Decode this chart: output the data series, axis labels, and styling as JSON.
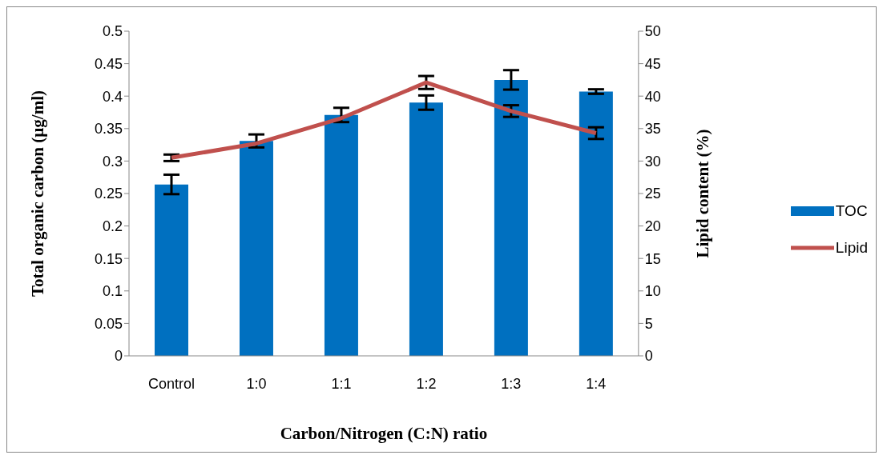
{
  "chart_data": {
    "type": "bar",
    "categories": [
      "Control",
      "1:0",
      "1:1",
      "1:2",
      "1:3",
      "1:4"
    ],
    "xlabel": "Carbon/Nitrogen (C:N) ratio",
    "ylabel": "Total organic carbon (µg/ml)",
    "y2label": "Lipid content (%)",
    "series": [
      {
        "name": "TOC",
        "color": "#0070c0",
        "values": [
          0.264,
          0.331,
          0.371,
          0.39,
          0.425,
          0.407
        ],
        "errors": [
          0.015,
          0.01,
          0.011,
          0.011,
          0.015,
          0.0035
        ]
      },
      {
        "name": "Lipid",
        "type": "line",
        "axis": "y2",
        "color": "#c0504d",
        "values": [
          30.5,
          32.7,
          36.6,
          42.1,
          37.7,
          34.3
        ],
        "errors": [
          0.5,
          null,
          null,
          1.0,
          0.9,
          0.9
        ]
      }
    ],
    "ylim": [
      0,
      0.5
    ],
    "yticks": [
      0,
      0.05,
      0.1,
      0.15,
      0.2,
      0.25,
      0.3,
      0.35,
      0.4,
      0.45,
      0.5
    ],
    "y2lim": [
      0,
      50
    ],
    "y2ticks": [
      0,
      5,
      10,
      15,
      20,
      25,
      30,
      35,
      40,
      45,
      50
    ],
    "grid": false,
    "legend": "right",
    "marker": "none"
  }
}
